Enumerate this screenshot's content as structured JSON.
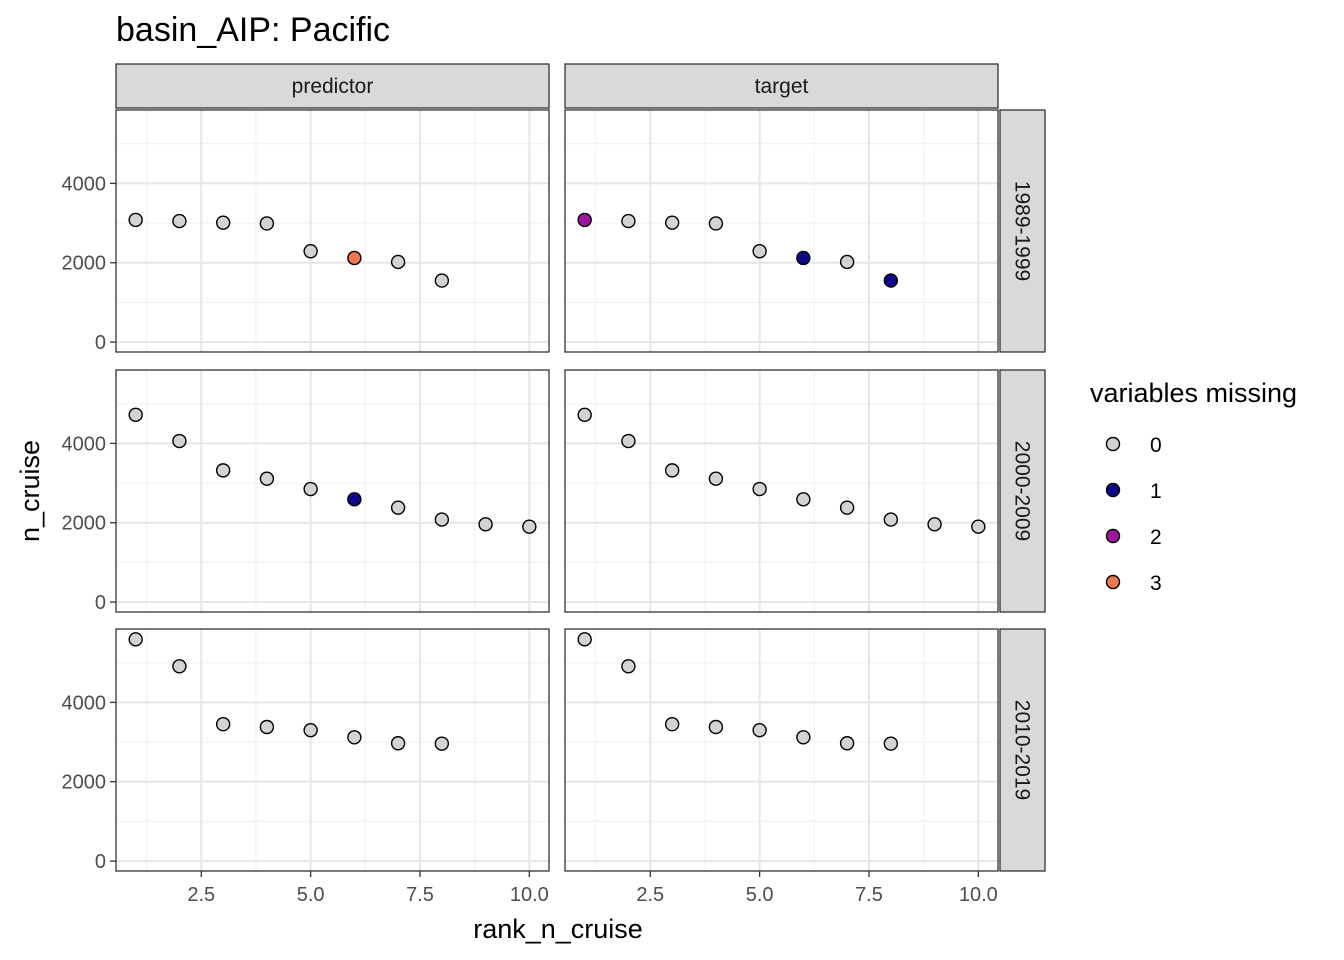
{
  "chart_data": {
    "type": "scatter",
    "title": "basin_AIP: Pacific",
    "xlabel": "rank_n_cruise",
    "ylabel": "n_cruise",
    "xlim": [
      0.55,
      10.45
    ],
    "ylim": [
      -250,
      5850
    ],
    "x_ticks": [
      2.5,
      5.0,
      7.5,
      10.0
    ],
    "x_tick_labels": [
      "2.5",
      "5.0",
      "7.5",
      "10.0"
    ],
    "y_ticks": [
      0,
      2000,
      4000
    ],
    "y_tick_labels": [
      "0",
      "2000",
      "4000"
    ],
    "grid": true,
    "facet_columns": [
      "predictor",
      "target"
    ],
    "facet_rows": [
      "1989-1999",
      "2000-2009",
      "2010-2019"
    ],
    "legend": {
      "title": "variables missing",
      "position": "right",
      "entries": [
        {
          "label": "0",
          "color": "#d3d3d3"
        },
        {
          "label": "1",
          "color": "#0d0887"
        },
        {
          "label": "2",
          "color": "#9c179e"
        },
        {
          "label": "3",
          "color": "#ed7953"
        }
      ]
    },
    "panels": [
      {
        "column": "predictor",
        "row": "1989-1999",
        "x": [
          1,
          2,
          3,
          4,
          5,
          6,
          7,
          8
        ],
        "y": [
          3080,
          3050,
          3010,
          2990,
          2290,
          2120,
          2020,
          1550
        ],
        "missing": [
          "0",
          "0",
          "0",
          "0",
          "0",
          "3",
          "0",
          "0"
        ]
      },
      {
        "column": "target",
        "row": "1989-1999",
        "x": [
          1,
          2,
          3,
          4,
          5,
          6,
          7,
          8
        ],
        "y": [
          3080,
          3050,
          3010,
          2990,
          2290,
          2120,
          2020,
          1550
        ],
        "missing": [
          "2",
          "0",
          "0",
          "0",
          "0",
          "1",
          "0",
          "1"
        ]
      },
      {
        "column": "predictor",
        "row": "2000-2009",
        "x": [
          1,
          2,
          3,
          4,
          5,
          6,
          7,
          8,
          9,
          10
        ],
        "y": [
          4720,
          4060,
          3320,
          3110,
          2850,
          2590,
          2380,
          2080,
          1960,
          1900
        ],
        "missing": [
          "0",
          "0",
          "0",
          "0",
          "0",
          "1",
          "0",
          "0",
          "0",
          "0"
        ]
      },
      {
        "column": "target",
        "row": "2000-2009",
        "x": [
          1,
          2,
          3,
          4,
          5,
          6,
          7,
          8,
          9,
          10
        ],
        "y": [
          4720,
          4060,
          3320,
          3110,
          2850,
          2590,
          2380,
          2080,
          1960,
          1900
        ],
        "missing": [
          "0",
          "0",
          "0",
          "0",
          "0",
          "0",
          "0",
          "0",
          "0",
          "0"
        ]
      },
      {
        "column": "predictor",
        "row": "2010-2019",
        "x": [
          1,
          2,
          3,
          4,
          5,
          6,
          7,
          8
        ],
        "y": [
          5590,
          4910,
          3450,
          3380,
          3300,
          3120,
          2970,
          2960
        ],
        "missing": [
          "0",
          "0",
          "0",
          "0",
          "0",
          "0",
          "0",
          "0"
        ]
      },
      {
        "column": "target",
        "row": "2010-2019",
        "x": [
          1,
          2,
          3,
          4,
          5,
          6,
          7,
          8
        ],
        "y": [
          5590,
          4910,
          3450,
          3380,
          3300,
          3120,
          2970,
          2960
        ],
        "missing": [
          "0",
          "0",
          "0",
          "0",
          "0",
          "0",
          "0",
          "0"
        ]
      }
    ]
  }
}
